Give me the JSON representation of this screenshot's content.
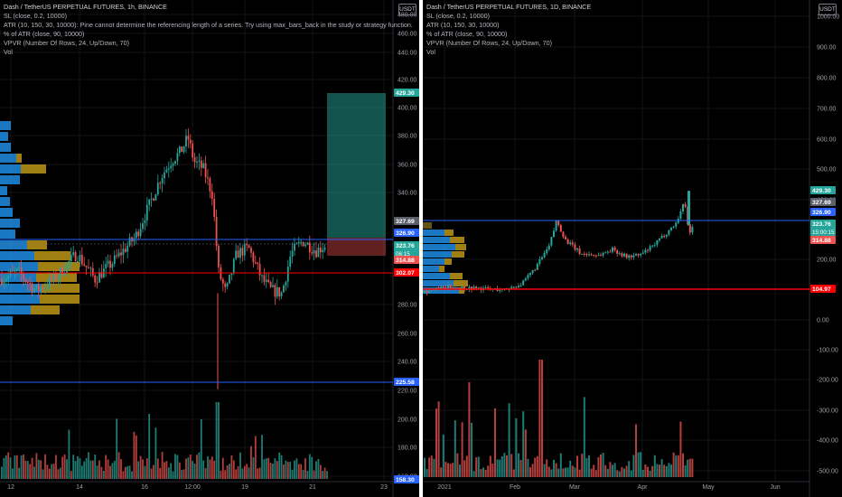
{
  "colors": {
    "up": "#26a69a",
    "down": "#ef5350",
    "bg": "#000000",
    "grid": "#141414",
    "axis_text": "#9aa0a6",
    "blue_line": "#2962ff",
    "red_line": "#ff0000",
    "vp_blue": "#2196f3",
    "vp_gold": "#c8a018"
  },
  "left_chart": {
    "title": "Dash / TetherUS PERPETUAL FUTURES, 1h, BINANCE",
    "legend": [
      "SL (close, 0.2, 10000)",
      "ATR (10, 150, 30, 10000): Pine cannot determine the referencing length of a series. Try using max_bars_back in the study or strategy function.",
      "% of ATR (close, 90, 10000)",
      "VPVR (Number Of Rows, 24, Up/Down, 70)",
      "Vol"
    ],
    "currency_button": "USDT",
    "y_ticks": [
      "480.00",
      "460.00",
      "440.00",
      "420.00",
      "400.00",
      "380.00",
      "360.00",
      "340.00",
      "280.00",
      "260.00",
      "240.00",
      "220.00",
      "200.00",
      "180.00",
      "160.00"
    ],
    "x_ticks": [
      "12",
      "14",
      "16",
      "12:00",
      "19",
      "21",
      "23"
    ],
    "price_badges": [
      {
        "label": "429.30",
        "color": "#26a69a"
      },
      {
        "label": "327.69",
        "color": "#5d606b"
      },
      {
        "label": "326.90",
        "color": "#2962ff"
      },
      {
        "label": "323.76",
        "sub": "06:15",
        "color": "#26a69a"
      },
      {
        "label": "314.88",
        "color": "#ef5350"
      },
      {
        "label": "302.07",
        "color": "#ff0000"
      },
      {
        "label": "225.58",
        "color": "#2962ff"
      },
      {
        "label": "158.30",
        "color": "#2962ff"
      }
    ]
  },
  "right_chart": {
    "title": "Dash / TetherUS PERPETUAL FUTURES, 1D, BINANCE",
    "legend": [
      "SL (close, 0.2, 10000)",
      "ATR (10, 150, 30, 10000)",
      "% of ATR (close, 90, 10000)",
      "VPVR (Number Of Rows, 24, Up/Down, 70)",
      "Vol"
    ],
    "currency_button": "USDT",
    "y_ticks": [
      "1000.00",
      "900.00",
      "800.00",
      "700.00",
      "600.00",
      "500.00",
      "400.00",
      "200.00",
      "0.00",
      "-100.00",
      "-200.00",
      "-300.00",
      "-400.00",
      "-500.00"
    ],
    "x_ticks": [
      "2021",
      "Feb",
      "Mar",
      "Apr",
      "May",
      "Jun"
    ],
    "price_badges": [
      {
        "label": "429.30",
        "color": "#26a69a"
      },
      {
        "label": "327.69",
        "color": "#5d606b"
      },
      {
        "label": "326.90",
        "color": "#2962ff"
      },
      {
        "label": "323.76",
        "sub": "15:00:15",
        "color": "#26a69a"
      },
      {
        "label": "314.88",
        "color": "#ef5350"
      },
      {
        "label": "104.97",
        "color": "#ff0000"
      }
    ]
  }
}
